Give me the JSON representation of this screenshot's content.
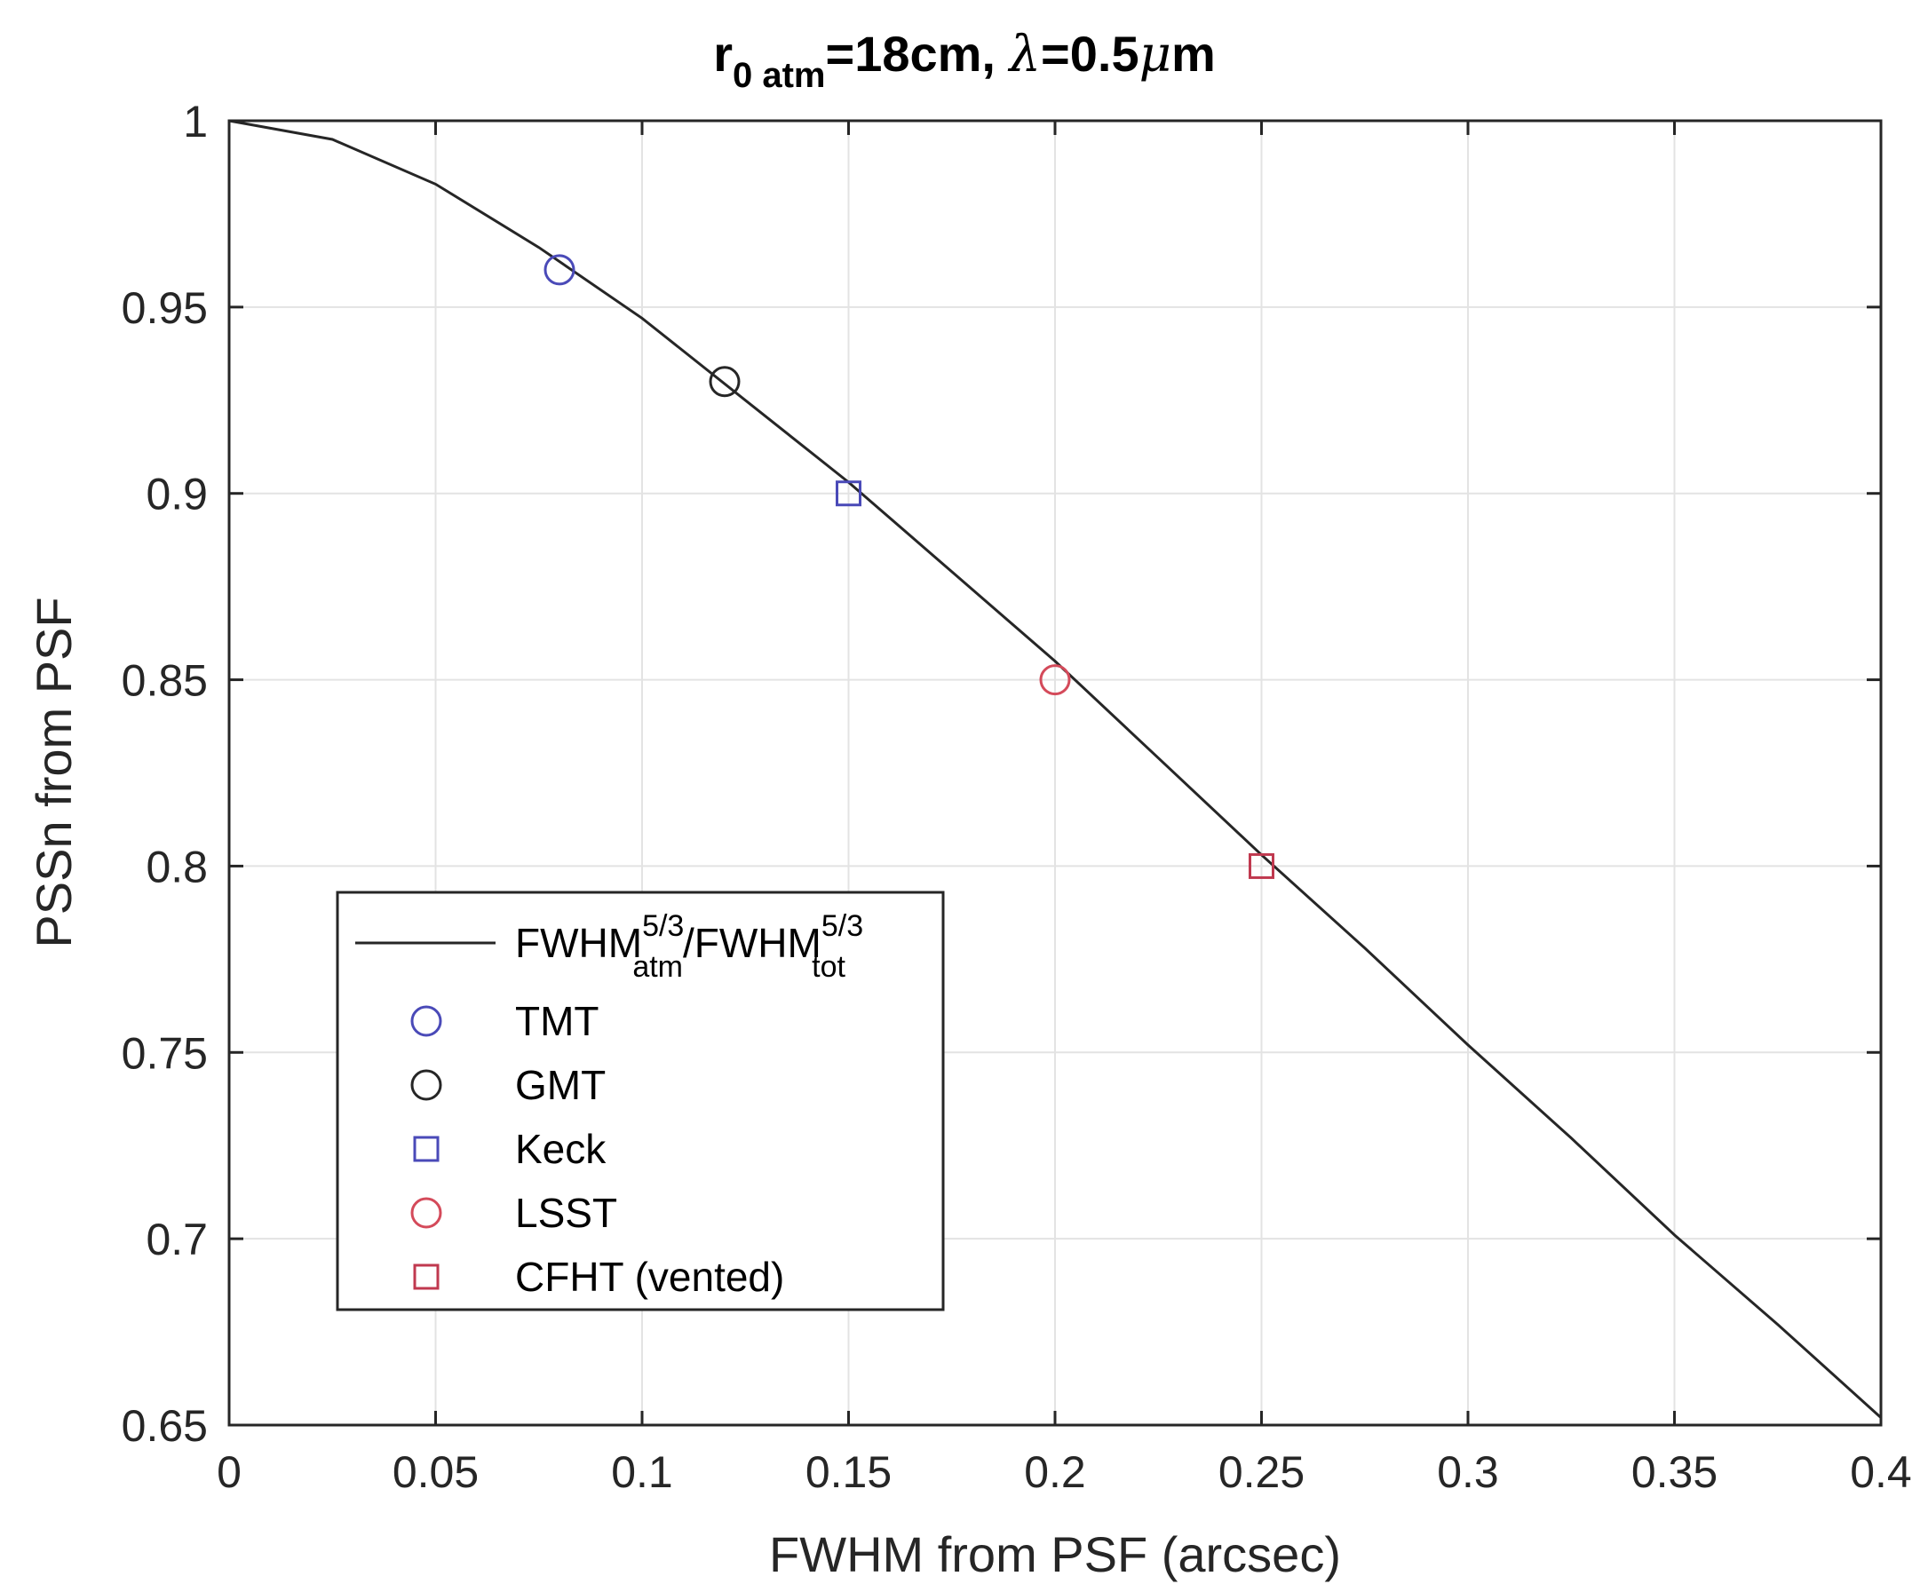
{
  "chart_data": {
    "type": "line",
    "title": {
      "r": "r",
      "sub": "0 atm",
      "mid": "=18cm, ",
      "lambda": "λ",
      "eq": "=0.5",
      "mu": "μ",
      "unit": "m"
    },
    "xlabel": "FWHM from PSF (arcsec)",
    "ylabel": "PSSn from PSF",
    "xlim": [
      0,
      0.4
    ],
    "ylim": [
      0.65,
      1
    ],
    "grid": true,
    "xticks": [
      0,
      0.05,
      0.1,
      0.15,
      0.2,
      0.25,
      0.3,
      0.35,
      0.4
    ],
    "yticks": [
      0.65,
      0.7,
      0.75,
      0.8,
      0.85,
      0.9,
      0.95,
      1
    ],
    "xtick_labels": [
      "0",
      "0.05",
      "0.1",
      "0.15",
      "0.2",
      "0.25",
      "0.3",
      "0.35",
      "0.4"
    ],
    "ytick_labels": [
      "0.65",
      "0.7",
      "0.75",
      "0.8",
      "0.85",
      "0.9",
      "0.95",
      "1"
    ],
    "curve": {
      "legend": {
        "base1": "FWHM",
        "sup1": "5/3",
        "sub1": "atm",
        "slash": "/FWHM",
        "sup2": "5/3",
        "sub2": "tot"
      },
      "color": "#262626",
      "x": [
        0,
        0.025,
        0.05,
        0.075,
        0.1,
        0.125,
        0.15,
        0.175,
        0.2,
        0.225,
        0.25,
        0.275,
        0.3,
        0.325,
        0.35,
        0.375,
        0.4
      ],
      "y": [
        1,
        0.995,
        0.983,
        0.966,
        0.947,
        0.925,
        0.903,
        0.879,
        0.855,
        0.829,
        0.803,
        0.778,
        0.752,
        0.727,
        0.701,
        0.677,
        0.652
      ]
    },
    "series": [
      {
        "name": "TMT",
        "marker": "circle",
        "color": "#4a4ab8",
        "x": 0.08,
        "y": 0.96
      },
      {
        "name": "GMT",
        "marker": "circle",
        "color": "#262626",
        "x": 0.12,
        "y": 0.93
      },
      {
        "name": "Keck",
        "marker": "square",
        "color": "#4a4ab8",
        "x": 0.15,
        "y": 0.9
      },
      {
        "name": "LSST",
        "marker": "circle",
        "color": "#d44a5a",
        "x": 0.2,
        "y": 0.85
      },
      {
        "name": "CFHT (vented)",
        "marker": "square",
        "color": "#c0394f",
        "x": 0.25,
        "y": 0.8
      }
    ],
    "legend_location": "bottom-left"
  }
}
